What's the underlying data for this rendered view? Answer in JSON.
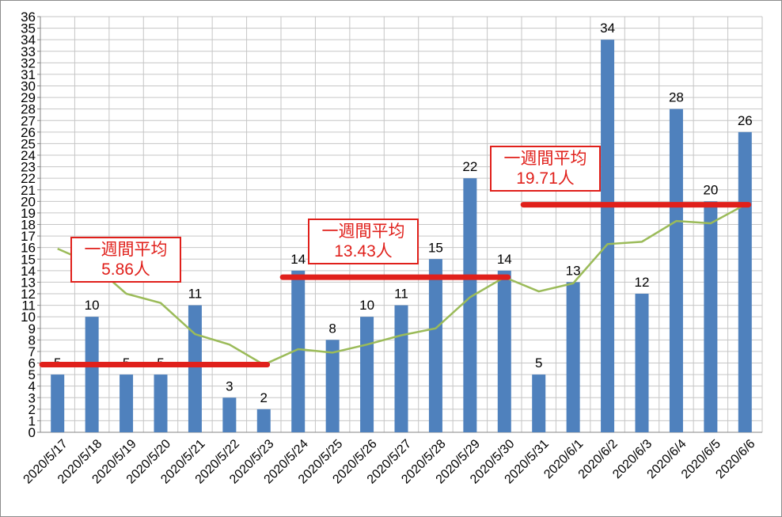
{
  "chart_data": {
    "type": "bar",
    "categories": [
      "2020/5/17",
      "2020/5/18",
      "2020/5/19",
      "2020/5/20",
      "2020/5/21",
      "2020/5/22",
      "2020/5/23",
      "2020/5/24",
      "2020/5/25",
      "2020/5/26",
      "2020/5/27",
      "2020/5/28",
      "2020/5/29",
      "2020/5/30",
      "2020/5/31",
      "2020/6/1",
      "2020/6/2",
      "2020/6/3",
      "2020/6/4",
      "2020/6/5",
      "2020/6/6"
    ],
    "values": [
      5,
      10,
      5,
      5,
      11,
      3,
      2,
      14,
      8,
      10,
      11,
      15,
      22,
      14,
      5,
      13,
      34,
      12,
      28,
      20,
      26
    ],
    "moving_average": [
      15.9,
      14.6,
      12.0,
      11.2,
      8.5,
      7.6,
      5.86,
      7.2,
      6.9,
      7.6,
      8.4,
      9.0,
      11.7,
      13.43,
      12.2,
      12.9,
      16.3,
      16.5,
      18.3,
      18.1,
      19.71
    ],
    "weekly_average_segments": [
      {
        "label": "一週間平均",
        "value_text": "5.86人",
        "value": 5.86,
        "from_index": 0,
        "to_index": 6
      },
      {
        "label": "一週間平均",
        "value_text": "13.43人",
        "value": 13.43,
        "from_index": 7,
        "to_index": 13
      },
      {
        "label": "一週間平均",
        "value_text": "19.71人",
        "value": 19.71,
        "from_index": 14,
        "to_index": 20
      }
    ],
    "ylim": [
      0,
      36
    ],
    "y_ticks": [
      0,
      1,
      2,
      3,
      4,
      5,
      6,
      7,
      8,
      9,
      10,
      11,
      12,
      13,
      14,
      15,
      16,
      17,
      18,
      19,
      20,
      21,
      22,
      23,
      24,
      25,
      26,
      27,
      28,
      29,
      30,
      31,
      32,
      33,
      34,
      35,
      36
    ],
    "title": "",
    "xlabel": "",
    "ylabel": "",
    "grid": true,
    "colors": {
      "bar": "#4f81bd",
      "line": "#9bbb59",
      "average": "#e0201b",
      "grid": "#c6c6c6"
    }
  }
}
